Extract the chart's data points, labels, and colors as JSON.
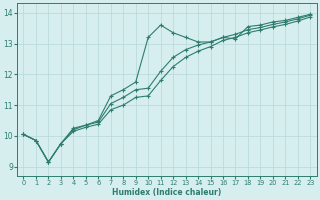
{
  "xlabel": "Humidex (Indice chaleur)",
  "bg_color": "#d6eeee",
  "grid_color": "#b8d8d8",
  "line_color": "#2e7d6e",
  "xlim": [
    -0.5,
    23.5
  ],
  "ylim": [
    8.7,
    14.3
  ],
  "xticks": [
    0,
    1,
    2,
    3,
    4,
    5,
    6,
    7,
    8,
    9,
    10,
    11,
    12,
    13,
    14,
    15,
    16,
    17,
    18,
    19,
    20,
    21,
    22,
    23
  ],
  "yticks": [
    9,
    10,
    11,
    12,
    13,
    14
  ],
  "line1_x": [
    0,
    1,
    2,
    3,
    4,
    5,
    6,
    7,
    8,
    9,
    10,
    11,
    12,
    13,
    14,
    15,
    16,
    17,
    18,
    19,
    20,
    21,
    22,
    23
  ],
  "line1_y": [
    10.05,
    9.85,
    9.15,
    9.75,
    10.25,
    10.35,
    10.5,
    11.3,
    11.5,
    11.75,
    13.2,
    13.6,
    13.35,
    13.2,
    13.05,
    13.05,
    13.2,
    13.15,
    13.55,
    13.6,
    13.7,
    13.75,
    13.85,
    13.95
  ],
  "line2_x": [
    0,
    1,
    2,
    3,
    4,
    5,
    6,
    7,
    8,
    9,
    10,
    11,
    12,
    13,
    14,
    15,
    16,
    17,
    18,
    19,
    20,
    21,
    22,
    23
  ],
  "line2_y": [
    10.05,
    9.85,
    9.15,
    9.75,
    10.2,
    10.35,
    10.45,
    11.05,
    11.25,
    11.5,
    11.55,
    12.1,
    12.55,
    12.8,
    12.95,
    13.05,
    13.2,
    13.3,
    13.45,
    13.52,
    13.62,
    13.7,
    13.8,
    13.92
  ],
  "line3_x": [
    0,
    1,
    2,
    3,
    4,
    5,
    6,
    7,
    8,
    9,
    10,
    11,
    12,
    13,
    14,
    15,
    16,
    17,
    18,
    19,
    20,
    21,
    22,
    23
  ],
  "line3_y": [
    10.05,
    9.85,
    9.15,
    9.75,
    10.15,
    10.28,
    10.38,
    10.85,
    11.0,
    11.25,
    11.3,
    11.8,
    12.25,
    12.55,
    12.75,
    12.9,
    13.1,
    13.2,
    13.35,
    13.44,
    13.54,
    13.62,
    13.73,
    13.86
  ]
}
